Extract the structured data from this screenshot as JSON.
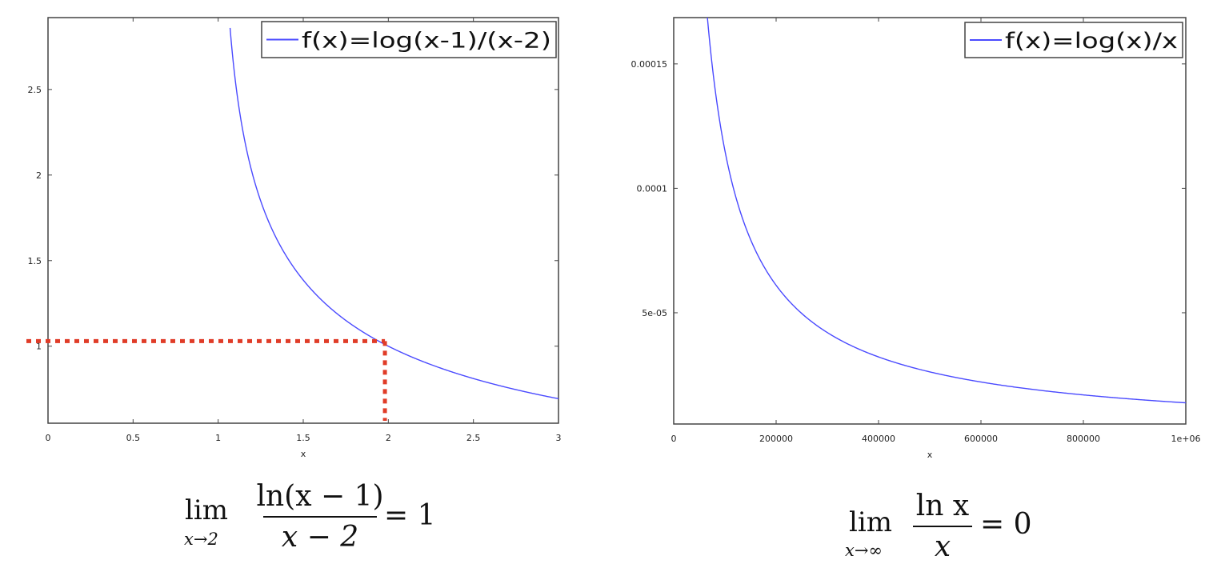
{
  "chart_data": [
    {
      "type": "line",
      "function": "log(x-1)/(x-2)",
      "legend": "f(x)=log(x-1)/(x-2)",
      "legend_position": "top-right",
      "xlabel": "x",
      "ylabel": "",
      "xlim": [
        0,
        3
      ],
      "ylim": [
        0.55,
        2.92
      ],
      "x_domain": [
        1.07,
        3
      ],
      "xticks": [
        0,
        0.5,
        1,
        1.5,
        2,
        2.5,
        3
      ],
      "xtick_labels": [
        "0",
        "0.5",
        "1",
        "1.5",
        "2",
        "2.5",
        "3"
      ],
      "yticks": [
        1,
        1.5,
        2,
        2.5
      ],
      "ytick_labels": [
        "1",
        "1.5",
        "2",
        "2.5"
      ],
      "series_color": "#4a4aff",
      "annotation": {
        "type": "dotted-guide",
        "x": 1.98,
        "y": 1.03,
        "color": "#e03c28"
      },
      "grid": false
    },
    {
      "type": "line",
      "function": "log(x)/x",
      "legend": "f(x)=log(x)/x",
      "legend_position": "top-right",
      "xlabel": "x",
      "ylabel": "",
      "xlim": [
        0,
        1000000
      ],
      "ylim": [
        5.3e-06,
        0.0001686
      ],
      "x_domain": [
        65000,
        1000000
      ],
      "xticks": [
        0,
        200000,
        400000,
        600000,
        800000,
        1000000
      ],
      "xtick_labels": [
        "0",
        "200000",
        "400000",
        "600000",
        "800000",
        "1e+06"
      ],
      "yticks": [
        5e-05,
        0.0001,
        0.00015
      ],
      "ytick_labels": [
        "5e-05",
        "0.0001",
        "0.00015"
      ],
      "series_color": "#4a4aff",
      "grid": false
    }
  ],
  "formulas": {
    "left": {
      "lim": "lim",
      "sub": "x→2",
      "numerator": "ln(x − 1)",
      "denominator": "x − 2",
      "rhs": "= 1"
    },
    "right": {
      "lim": "lim",
      "sub": "x→∞",
      "numerator": "ln x",
      "denominator": "x",
      "rhs": "= 0"
    }
  }
}
